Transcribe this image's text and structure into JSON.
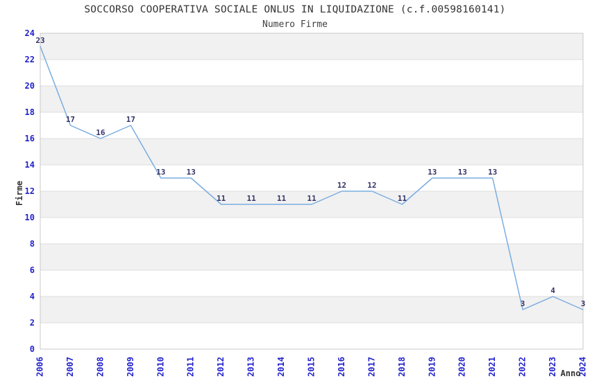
{
  "page": {
    "background": "#ffffff"
  },
  "chart_data": {
    "type": "line",
    "title": "SOCCORSO COOPERATIVA SOCIALE ONLUS IN LIQUIDAZIONE (c.f.00598160141)",
    "subtitle": "Numero Firme",
    "xlabel": "Anno",
    "ylabel": "Firme",
    "categories": [
      "2006",
      "2007",
      "2008",
      "2009",
      "2010",
      "2011",
      "2012",
      "2013",
      "2014",
      "2015",
      "2016",
      "2017",
      "2018",
      "2019",
      "2020",
      "2021",
      "2022",
      "2023",
      "2024"
    ],
    "values": [
      23,
      17,
      16,
      17,
      13,
      13,
      11,
      11,
      11,
      11,
      12,
      12,
      11,
      13,
      13,
      13,
      3,
      4,
      3
    ],
    "ylim": [
      0,
      24
    ],
    "ytick_step": 2,
    "grid": "horizontal",
    "banding": "alternating-gray-from-top",
    "legend_position": "none",
    "data_labels_visible": true,
    "colors": {
      "line": "#7aade0",
      "tick_label": "#2222cc",
      "data_label": "#333366",
      "band": "#f1f1f1",
      "band_alt": "#ffffff",
      "gridline": "#dddddd",
      "border": "#c9c9c9",
      "title_text": "#333333"
    }
  }
}
